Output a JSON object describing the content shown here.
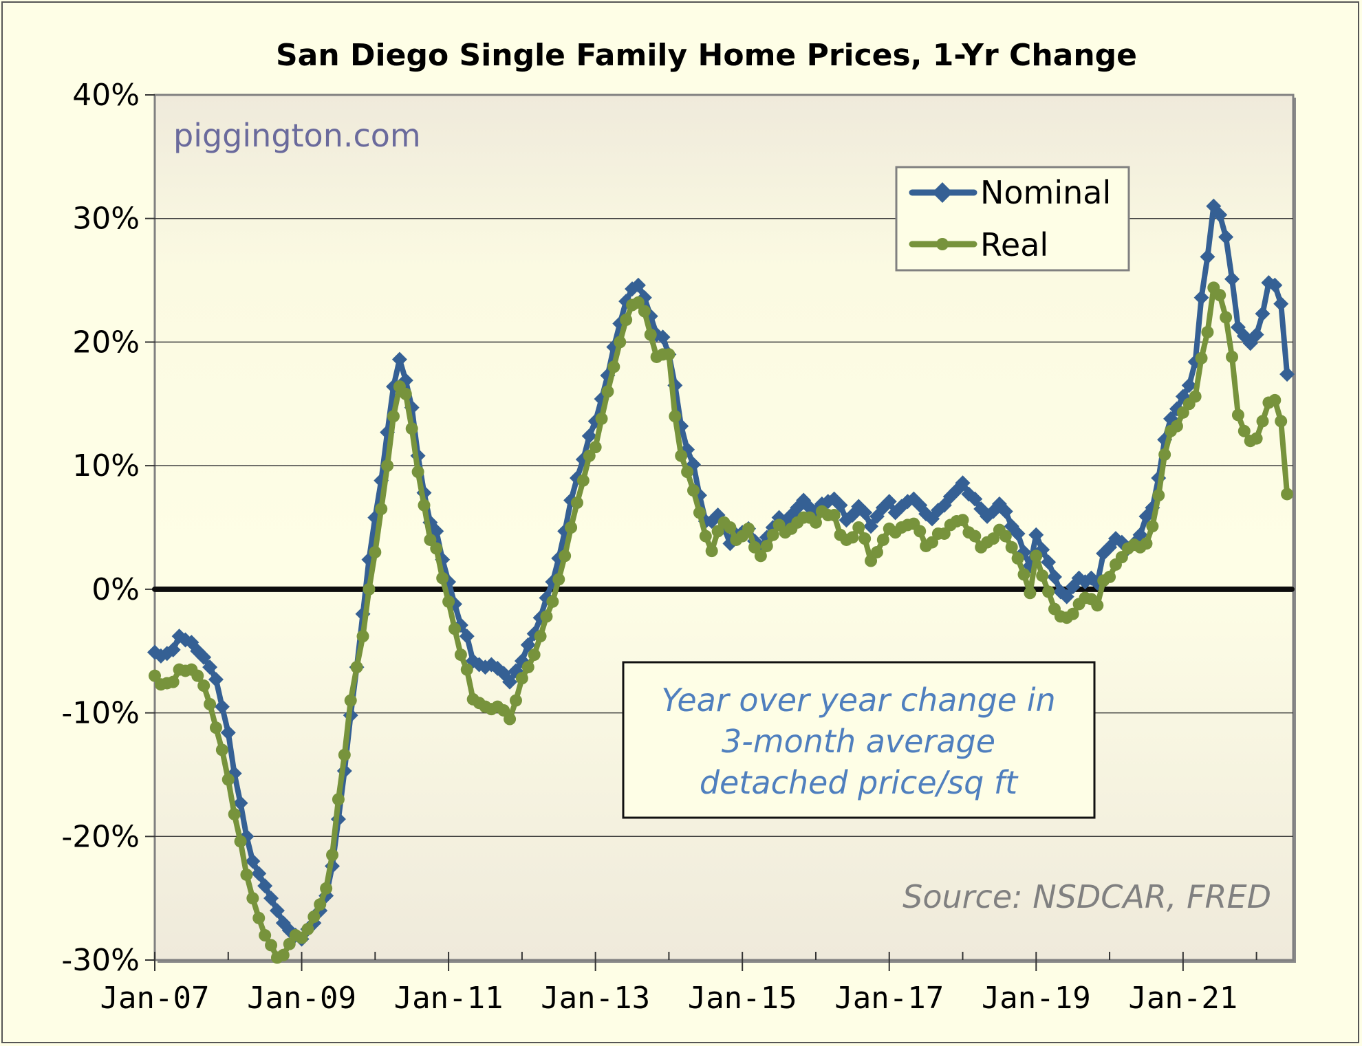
{
  "chart_data": {
    "type": "line",
    "title": "San Diego Single Family Home Prices, 1-Yr Change",
    "xlabel": "",
    "ylabel": "",
    "ylim": [
      -30,
      40
    ],
    "yticks": [
      40,
      30,
      20,
      10,
      0,
      -10,
      -20,
      -30
    ],
    "ytick_labels": [
      "40%",
      "30%",
      "20%",
      "10%",
      "0%",
      "-10%",
      "-20%",
      "-30%"
    ],
    "x_start": "Jan-07",
    "x_frequency": "monthly",
    "x_range_months": [
      0,
      186
    ],
    "xtick_labels": [
      {
        "label": "Jan-07",
        "month": 0
      },
      {
        "label": "Jan-09",
        "month": 24
      },
      {
        "label": "Jan-11",
        "month": 48
      },
      {
        "label": "Jan-13",
        "month": 72
      },
      {
        "label": "Jan-15",
        "month": 96
      },
      {
        "label": "Jan-17",
        "month": 120
      },
      {
        "label": "Jan-19",
        "month": 144
      },
      {
        "label": "Jan-21",
        "month": 168
      }
    ],
    "minor_xticks_months": [
      12,
      36,
      60,
      84,
      108,
      132,
      156,
      180
    ],
    "grid": true,
    "zero_line": true,
    "legend_position": "top-right",
    "series": [
      {
        "name": "Nominal",
        "color": "#356094",
        "marker": "diamond",
        "values": [
          -5.1,
          -5.4,
          -5.2,
          -4.9,
          -3.8,
          -4.1,
          -4.3,
          -5.0,
          -5.5,
          -6.3,
          -7.3,
          -9.5,
          -11.6,
          -14.9,
          -17.3,
          -20.0,
          -22.0,
          -23.0,
          -24.0,
          -25.0,
          -26.0,
          -27.0,
          -27.6,
          -28.0,
          -28.3,
          -27.5,
          -27.0,
          -26.0,
          -24.8,
          -22.4,
          -18.6,
          -14.7,
          -10.2,
          -6.3,
          -2.0,
          2.4,
          5.8,
          8.8,
          12.7,
          16.4,
          18.6,
          16.9,
          14.7,
          10.8,
          7.8,
          5.4,
          4.7,
          2.4,
          0.6,
          -1.2,
          -2.9,
          -3.8,
          -5.8,
          -6.1,
          -6.3,
          -6.1,
          -6.4,
          -6.8,
          -7.5,
          -6.6,
          -5.8,
          -4.5,
          -3.6,
          -2.3,
          -0.7,
          0.6,
          2.5,
          4.7,
          7.2,
          9.0,
          10.5,
          12.4,
          13.6,
          15.4,
          17.3,
          19.6,
          21.5,
          23.3,
          24.3,
          24.6,
          23.6,
          22.1,
          20.6,
          20.4,
          19.0,
          16.5,
          13.2,
          11.3,
          10.1,
          7.6,
          5.5,
          5.5,
          6.0,
          5.0,
          3.7,
          4.4,
          4.6,
          4.9,
          3.9,
          3.3,
          4.2,
          5.0,
          5.8,
          5.4,
          6.0,
          6.6,
          7.2,
          6.6,
          6.3,
          6.9,
          7.1,
          7.3,
          6.8,
          5.6,
          6.0,
          6.7,
          6.2,
          5.1,
          5.9,
          6.6,
          7.1,
          6.2,
          6.7,
          7.1,
          7.3,
          6.8,
          6.1,
          5.7,
          6.4,
          6.8,
          7.5,
          8.0,
          8.6,
          7.7,
          7.3,
          6.5,
          5.9,
          6.3,
          6.9,
          6.3,
          5.1,
          4.5,
          3.0,
          1.9,
          4.4,
          3.2,
          2.2,
          1.0,
          -0.2,
          -0.6,
          0.2,
          0.9,
          0.6,
          0.9,
          0.5,
          2.9,
          3.4,
          4.1,
          3.8,
          3.3,
          3.7,
          4.4,
          5.9,
          6.6,
          9.0,
          12.1,
          13.8,
          14.6,
          15.6,
          16.5,
          18.4,
          23.6,
          26.9,
          31.0,
          30.3,
          28.5,
          25.1,
          21.2,
          20.5,
          19.9,
          20.6,
          22.3,
          24.8,
          24.6,
          23.1,
          17.4
        ]
      },
      {
        "name": "Real",
        "color": "#77933c",
        "marker": "circle",
        "values": [
          -7.0,
          -7.7,
          -7.6,
          -7.5,
          -6.5,
          -6.6,
          -6.5,
          -7.0,
          -7.8,
          -9.3,
          -11.2,
          -13.0,
          -15.4,
          -18.2,
          -20.4,
          -23.1,
          -25.0,
          -26.6,
          -28.0,
          -28.8,
          -29.8,
          -29.6,
          -28.7,
          -28.0,
          -28.2,
          -27.5,
          -26.5,
          -25.5,
          -24.2,
          -21.5,
          -17.0,
          -13.4,
          -9.0,
          -6.3,
          -3.8,
          0.0,
          3.0,
          6.5,
          10.0,
          14.0,
          16.4,
          15.8,
          13.0,
          9.5,
          6.8,
          4.0,
          3.3,
          0.9,
          -1.0,
          -3.2,
          -5.3,
          -6.5,
          -8.9,
          -9.2,
          -9.5,
          -9.7,
          -9.5,
          -9.8,
          -10.5,
          -9.0,
          -7.2,
          -6.3,
          -5.3,
          -3.8,
          -2.2,
          -1.0,
          0.8,
          2.7,
          5.0,
          7.0,
          8.8,
          10.8,
          11.5,
          13.8,
          16.0,
          18.0,
          20.0,
          21.8,
          23.0,
          23.2,
          22.5,
          20.6,
          18.8,
          19.0,
          19.0,
          14.0,
          10.8,
          9.5,
          8.0,
          6.2,
          4.3,
          3.1,
          4.7,
          5.4,
          5.0,
          4.0,
          4.3,
          4.9,
          3.4,
          2.7,
          3.5,
          4.4,
          5.2,
          4.6,
          4.9,
          5.4,
          5.8,
          5.8,
          5.4,
          6.3,
          6.0,
          6.0,
          4.4,
          4.0,
          4.2,
          5.0,
          4.1,
          2.3,
          3.0,
          4.0,
          4.9,
          4.6,
          5.0,
          5.2,
          5.3,
          4.7,
          3.5,
          3.8,
          4.5,
          4.5,
          5.2,
          5.5,
          5.6,
          4.6,
          4.3,
          3.4,
          3.8,
          4.1,
          4.8,
          4.3,
          3.4,
          2.5,
          1.2,
          -0.3,
          2.7,
          1.1,
          -0.2,
          -1.6,
          -2.2,
          -2.3,
          -2.0,
          -1.2,
          -0.7,
          -0.8,
          -1.3,
          0.7,
          1.0,
          2.0,
          2.6,
          3.3,
          3.6,
          3.4,
          3.7,
          5.1,
          7.6,
          10.9,
          12.8,
          13.2,
          14.3,
          15.0,
          15.6,
          18.7,
          20.8,
          24.4,
          23.8,
          22.0,
          18.8,
          14.1,
          12.8,
          12.0,
          12.2,
          13.6,
          15.1,
          15.3,
          13.6,
          7.7
        ]
      }
    ],
    "annotations": [
      {
        "id": "watermark",
        "text": "piggington.com",
        "color": "#6a6a9c"
      },
      {
        "id": "note",
        "lines": [
          "Year over year change in",
          "3-month average",
          "detached price/sq ft"
        ],
        "color": "#4f7fbe"
      },
      {
        "id": "source",
        "text": "Source: NSDCAR, FRED",
        "color": "#808080"
      }
    ]
  }
}
